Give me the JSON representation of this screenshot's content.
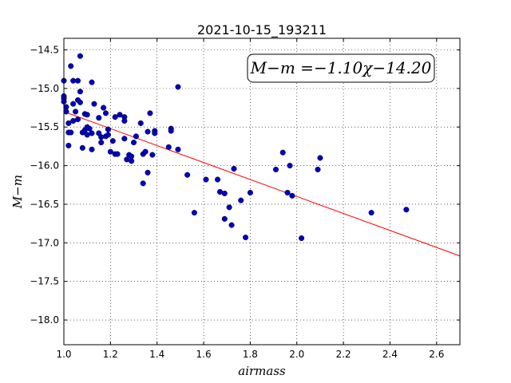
{
  "chart_data": {
    "type": "scatter",
    "title": "2021-10-15_193211",
    "xlabel": "airmass",
    "ylabel": "M−m",
    "xlim": [
      1.0,
      2.7
    ],
    "ylim": [
      -18.32,
      -14.35
    ],
    "y_inverted": false,
    "grid": true,
    "x_ticks": [
      "1.0",
      "1.2",
      "1.4",
      "1.6",
      "1.8",
      "2.0",
      "2.2",
      "2.4",
      "2.6"
    ],
    "y_ticks": [
      "−14.5",
      "−15.0",
      "−15.5",
      "−16.0",
      "−16.5",
      "−17.0",
      "−17.5",
      "−18.0"
    ],
    "annotation": "M−m =−1.10χ−14.20",
    "marker_color": "#0000bf",
    "fit_color": "#ff0000",
    "fit": {
      "slope": -1.1,
      "intercept": -14.2
    },
    "points": [
      {
        "x": 1.0,
        "y": -14.9
      },
      {
        "x": 1.0,
        "y": -15.1
      },
      {
        "x": 1.0,
        "y": -15.13
      },
      {
        "x": 1.0,
        "y": -15.17
      },
      {
        "x": 1.01,
        "y": -15.24
      },
      {
        "x": 1.01,
        "y": -15.3
      },
      {
        "x": 1.02,
        "y": -15.45
      },
      {
        "x": 1.02,
        "y": -15.57
      },
      {
        "x": 1.02,
        "y": -15.74
      },
      {
        "x": 1.03,
        "y": -14.71
      },
      {
        "x": 1.03,
        "y": -15.57
      },
      {
        "x": 1.04,
        "y": -14.9
      },
      {
        "x": 1.04,
        "y": -15.2
      },
      {
        "x": 1.04,
        "y": -15.42
      },
      {
        "x": 1.05,
        "y": -15.3
      },
      {
        "x": 1.06,
        "y": -14.9
      },
      {
        "x": 1.06,
        "y": -15.15
      },
      {
        "x": 1.06,
        "y": -15.4
      },
      {
        "x": 1.07,
        "y": -14.58
      },
      {
        "x": 1.07,
        "y": -15.04
      },
      {
        "x": 1.07,
        "y": -15.18
      },
      {
        "x": 1.08,
        "y": -15.57
      },
      {
        "x": 1.08,
        "y": -15.77
      },
      {
        "x": 1.09,
        "y": -15.33
      },
      {
        "x": 1.09,
        "y": -15.54
      },
      {
        "x": 1.1,
        "y": -15.34
      },
      {
        "x": 1.1,
        "y": -15.5
      },
      {
        "x": 1.1,
        "y": -15.6
      },
      {
        "x": 1.11,
        "y": -15.52
      },
      {
        "x": 1.12,
        "y": -14.92
      },
      {
        "x": 1.12,
        "y": -15.58
      },
      {
        "x": 1.12,
        "y": -15.79
      },
      {
        "x": 1.13,
        "y": -15.2
      },
      {
        "x": 1.15,
        "y": -15.38
      },
      {
        "x": 1.15,
        "y": -15.58
      },
      {
        "x": 1.16,
        "y": -15.63
      },
      {
        "x": 1.16,
        "y": -15.7
      },
      {
        "x": 1.17,
        "y": -15.25
      },
      {
        "x": 1.18,
        "y": -15.32
      },
      {
        "x": 1.18,
        "y": -15.62
      },
      {
        "x": 1.19,
        "y": -15.53
      },
      {
        "x": 1.19,
        "y": -15.6
      },
      {
        "x": 1.2,
        "y": -15.82
      },
      {
        "x": 1.21,
        "y": -15.68
      },
      {
        "x": 1.22,
        "y": -15.37
      },
      {
        "x": 1.22,
        "y": -15.85
      },
      {
        "x": 1.23,
        "y": -15.85
      },
      {
        "x": 1.24,
        "y": -15.34
      },
      {
        "x": 1.26,
        "y": -15.37
      },
      {
        "x": 1.26,
        "y": -15.42
      },
      {
        "x": 1.26,
        "y": -15.65
      },
      {
        "x": 1.27,
        "y": -15.92
      },
      {
        "x": 1.28,
        "y": -15.86
      },
      {
        "x": 1.29,
        "y": -15.94
      },
      {
        "x": 1.29,
        "y": -15.88
      },
      {
        "x": 1.3,
        "y": -15.7
      },
      {
        "x": 1.31,
        "y": -15.62
      },
      {
        "x": 1.33,
        "y": -15.45
      },
      {
        "x": 1.34,
        "y": -16.23
      },
      {
        "x": 1.34,
        "y": -15.85
      },
      {
        "x": 1.35,
        "y": -15.82
      },
      {
        "x": 1.36,
        "y": -15.56
      },
      {
        "x": 1.36,
        "y": -16.09
      },
      {
        "x": 1.37,
        "y": -15.32
      },
      {
        "x": 1.38,
        "y": -15.86
      },
      {
        "x": 1.39,
        "y": -15.55
      },
      {
        "x": 1.39,
        "y": -15.58
      },
      {
        "x": 1.45,
        "y": -15.76
      },
      {
        "x": 1.46,
        "y": -15.52
      },
      {
        "x": 1.46,
        "y": -15.55
      },
      {
        "x": 1.49,
        "y": -14.98
      },
      {
        "x": 1.49,
        "y": -15.79
      },
      {
        "x": 1.53,
        "y": -16.12
      },
      {
        "x": 1.56,
        "y": -16.61
      },
      {
        "x": 1.61,
        "y": -16.18
      },
      {
        "x": 1.66,
        "y": -16.18
      },
      {
        "x": 1.67,
        "y": -16.34
      },
      {
        "x": 1.69,
        "y": -16.36
      },
      {
        "x": 1.69,
        "y": -16.69
      },
      {
        "x": 1.71,
        "y": -16.54
      },
      {
        "x": 1.72,
        "y": -16.77
      },
      {
        "x": 1.73,
        "y": -16.04
      },
      {
        "x": 1.76,
        "y": -16.45
      },
      {
        "x": 1.78,
        "y": -16.93
      },
      {
        "x": 1.8,
        "y": -16.35
      },
      {
        "x": 1.91,
        "y": -16.05
      },
      {
        "x": 1.94,
        "y": -15.83
      },
      {
        "x": 1.96,
        "y": -16.35
      },
      {
        "x": 1.97,
        "y": -16.0
      },
      {
        "x": 1.98,
        "y": -16.39
      },
      {
        "x": 2.02,
        "y": -16.94
      },
      {
        "x": 2.09,
        "y": -16.05
      },
      {
        "x": 2.1,
        "y": -15.9
      },
      {
        "x": 2.32,
        "y": -16.61
      },
      {
        "x": 2.47,
        "y": -16.57
      }
    ]
  }
}
